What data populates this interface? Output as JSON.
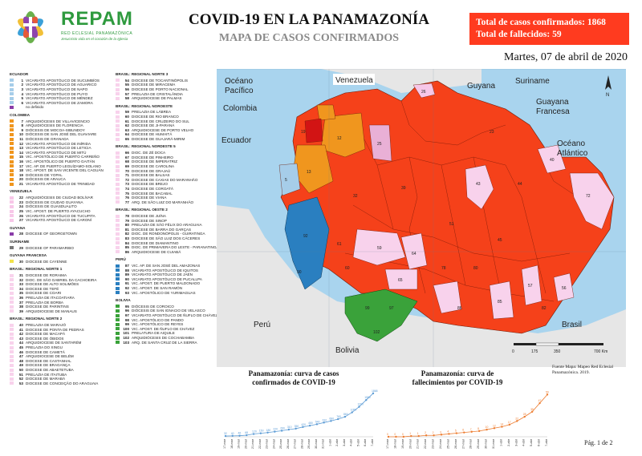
{
  "header": {
    "logo_name": "REPAM",
    "logo_sub": "RED ECLESIAL PANAMAZÓNICA",
    "logo_tag": "Jesucristo vida en el corazón de la Iglesia",
    "title": "COVID-19 EN LA PANAMAZONÍA",
    "subtitle": "MAPA DE CASOS CONFIRMADOS",
    "total_cases": "Total de casos confirmados: 1868",
    "total_deaths": "Total de fallecidos: 59",
    "date": "Martes, 07 de abril de 2020"
  },
  "colors": {
    "confirmed": "#f5411a",
    "ecuador": "#a6cde9",
    "colombia": "#f0961e",
    "venezuela": "#f7c7e8",
    "guyana": "#8a3ca8",
    "suriname": "#777777",
    "guyana_francesa": "#f2e24a",
    "brasil_n1": "#f8d2ec",
    "brasil_n2": "#f8d2ec",
    "peru": "#2a7fc0",
    "bolivia": "#3aa23a",
    "sin_datos": "#ffffff"
  },
  "legend": {
    "groups": [
      {
        "title": "ECUADOR",
        "items": [
          {
            "n": "1",
            "t": "VICARIATO APOSTÓLICO DE SUCUMBÍOS"
          },
          {
            "n": "2",
            "t": "VICARIATO APOSTÓLICO DE AGUARICO"
          },
          {
            "n": "3",
            "t": "VICARIATO APOSTÓLICO DE NAPO"
          },
          {
            "n": "4",
            "t": "VICARIATO APOSTÓLICO DE PUYO"
          },
          {
            "n": "5",
            "t": "VICARIATO APOSTÓLICO DE MÉNDEZ"
          },
          {
            "n": "6",
            "t": "VICARIATO APOSTÓLICO DE ZAMORA"
          },
          {
            "n": "",
            "t": "no definido"
          }
        ]
      },
      {
        "title": "COLOMBIA",
        "items": [
          {
            "n": "7",
            "t": "ARQUIDIÓCESIS DE VILLAVICENCIO"
          },
          {
            "n": "8",
            "t": "ARQUIDIÓCESIS DE FLORENCIA"
          },
          {
            "n": "9",
            "t": "DIÓCESIS DE MOCOA-SIBUNDOY"
          },
          {
            "n": "10",
            "t": "DIÓCESIS DE SAN JOSÉ DEL GUAVIARE"
          },
          {
            "n": "11",
            "t": "DIÓCESIS DE GRANADA"
          },
          {
            "n": "12",
            "t": "VICARIATO APOSTÓLICO DE INÍRIDA"
          },
          {
            "n": "13",
            "t": "VICARIATO APOSTÓLICO DE LETICIA"
          },
          {
            "n": "14",
            "t": "VICARIATO APOSTÓLICO DE MITÚ"
          },
          {
            "n": "15",
            "t": "VIC. APOSTÓLICO DE PUERTO CARREÑO"
          },
          {
            "n": "16",
            "t": "VIC. APOSTÓLICO DE PUERTO GAITÁN"
          },
          {
            "n": "17",
            "t": "VIC. AP. DE PUERTO LEGUÍZAMO-SOLANO"
          },
          {
            "n": "18",
            "t": "VIC. APOST. DE SAN VICENTE DEL CAGUÁN"
          },
          {
            "n": "19",
            "t": "DIÓCESIS DE YOPAL"
          },
          {
            "n": "20",
            "t": "DIÓCESIS DE ARAUCA"
          },
          {
            "n": "21",
            "t": "VICARIATO APOSTÓLICO DE TRINIDAD"
          }
        ]
      },
      {
        "title": "VENEZUELA",
        "items": [
          {
            "n": "22",
            "t": "ARQUIDIÓCESIS DE CIUDAD BOLÍVAR"
          },
          {
            "n": "23",
            "t": "DIÓCESIS DE CIUDAD GUAYANA"
          },
          {
            "n": "24",
            "t": "DIÓCESIS DE GUASDUALITO"
          },
          {
            "n": "25",
            "t": "VIC. APOST. DE PUERTO AYACUCHO"
          },
          {
            "n": "26",
            "t": "VICARIATO APOSTÓLICO DE TUCUPITA"
          },
          {
            "n": "27",
            "t": "VICARIATO APOSTÓLICO DE CARONÍ"
          }
        ]
      },
      {
        "title": "GUYANA",
        "items": [
          {
            "n": "28",
            "t": "DIOCESE OF GEORGETOWN"
          }
        ]
      },
      {
        "title": "SURINAME",
        "items": [
          {
            "n": "29",
            "t": "DIOCESE OF PARAMARIBO"
          }
        ]
      },
      {
        "title": "GUYANA FRANCESA",
        "items": [
          {
            "n": "30",
            "t": "DIOCESE DE CAYENNE"
          }
        ]
      },
      {
        "title": "BRASIL: REGIONAL NORTE 1",
        "items": [
          {
            "n": "31",
            "t": "DIOCESE DE RORAIMA"
          },
          {
            "n": "32",
            "t": "DIOC. DE SÃO GABRIEL DA CACHOEIRA"
          },
          {
            "n": "33",
            "t": "DIOCESE DE ALTO SOLIMÕES"
          },
          {
            "n": "34",
            "t": "DIOCESE DE TEFÉ"
          },
          {
            "n": "35",
            "t": "DIOCESE DE COARI"
          },
          {
            "n": "36",
            "t": "PRELAZIA DE ITACOATIARA"
          },
          {
            "n": "37",
            "t": "PRELAZIA DE BORBA"
          },
          {
            "n": "38",
            "t": "DIOCESE DE PARINTINS"
          },
          {
            "n": "39",
            "t": "ARQUIDIOCESE DE MANAUS"
          }
        ]
      },
      {
        "title": "BRASIL: REGIONAL NORTE 2",
        "items": [
          {
            "n": "40",
            "t": "PRELAZIA DE MARAJÓ"
          },
          {
            "n": "41",
            "t": "DIOCESE DE PONTA DE PEDRAS"
          },
          {
            "n": "42",
            "t": "DIOCESE DE MACAPÁ"
          },
          {
            "n": "43",
            "t": "DIOCESE DE ÓBIDOS"
          },
          {
            "n": "44",
            "t": "ARQUIDIOCESE DE SANTARÉM"
          },
          {
            "n": "45",
            "t": "PRELAZIA DO XINGU"
          },
          {
            "n": "46",
            "t": "DIOCESE DE CAMETÁ"
          },
          {
            "n": "47",
            "t": "ARQUIDIOCESE DE BELÉM"
          },
          {
            "n": "48",
            "t": "DIOCESE DE CASTANHAL"
          },
          {
            "n": "49",
            "t": "DIOCESE DE BRAGANÇA"
          },
          {
            "n": "50",
            "t": "DIOCESE DE ABAETETUBA"
          },
          {
            "n": "51",
            "t": "PRELAZIA DE ITAITUBA"
          },
          {
            "n": "52",
            "t": "DIOCESE DE MARABÁ"
          },
          {
            "n": "53",
            "t": "DIOCESE DE CONCEIÇÃO DO ARAGUAIA"
          }
        ]
      },
      {
        "title": "BRASIL: REGIONAL NORTE 3",
        "items": [
          {
            "n": "54",
            "t": "DIOCESE DE TOCANTINÓPOLIS"
          },
          {
            "n": "55",
            "t": "DIOCESE DE MIRACEMA"
          },
          {
            "n": "56",
            "t": "DIOCESE DE PORTO NACIONAL"
          },
          {
            "n": "57",
            "t": "PRELAZIA DE CRISTALÂNDIA"
          },
          {
            "n": "58",
            "t": "ARQUIDIOCESE DE PALMAS"
          }
        ]
      },
      {
        "title": "BRASIL: REGIONAL NOROESTE",
        "items": [
          {
            "n": "59",
            "t": "PRELAZIA DE LÁBREA"
          },
          {
            "n": "60",
            "t": "DIOCESE DE RIO BRANCO"
          },
          {
            "n": "61",
            "t": "DIOCESE DE CRUZEIRO DO SUL"
          },
          {
            "n": "62",
            "t": "DIOCESE DE JI-PARANÁ"
          },
          {
            "n": "63",
            "t": "ARQUIDIOCESE DE PORTO VELHO"
          },
          {
            "n": "64",
            "t": "DIOCESE DE HUMAITÁ"
          },
          {
            "n": "65",
            "t": "DIOCESE DE GUAJARÁ-MIRIM"
          }
        ]
      },
      {
        "title": "BRASIL: REGIONAL NORDESTE 5",
        "items": [
          {
            "n": "66",
            "t": "DIOC. DE ZÉ DOCA"
          },
          {
            "n": "67",
            "t": "DIOCESE DE PINHEIRO"
          },
          {
            "n": "68",
            "t": "DIOCESE DE IMPERATRIZ"
          },
          {
            "n": "69",
            "t": "DIOCESE DE CAROLINA"
          },
          {
            "n": "70",
            "t": "DIOCESE DE GRAJAÚ"
          },
          {
            "n": "71",
            "t": "DIOCESE DE BALSAS"
          },
          {
            "n": "72",
            "t": "DIOCESE DE CAXIAS DO MARANHÃO"
          },
          {
            "n": "73",
            "t": "DIOCESE DE BREJO"
          },
          {
            "n": "74",
            "t": "DIOCESE DE COROATÁ"
          },
          {
            "n": "75",
            "t": "DIOCESE DE BACABAL"
          },
          {
            "n": "76",
            "t": "DIOCESE DE VIANA"
          },
          {
            "n": "77",
            "t": "ARQ. DE SÃO LUIZ DO MARANHÃO"
          }
        ]
      },
      {
        "title": "BRASIL: REGIONAL OESTE 2",
        "items": [
          {
            "n": "78",
            "t": "DIOCESE DE JUÍNA"
          },
          {
            "n": "79",
            "t": "DIOCESE DE SINOP"
          },
          {
            "n": "80",
            "t": "PRELAZIA DE SÃO FÉLIX DO ARAGUAIA"
          },
          {
            "n": "81",
            "t": "DIOCESE DE BARRA DO GARÇAS"
          },
          {
            "n": "82",
            "t": "DIOC. DE RONDONÓPOLIS - GUIRATINGA"
          },
          {
            "n": "83",
            "t": "DIOCESE DE SÃO LUIZ DOS CÁCERES"
          },
          {
            "n": "84",
            "t": "DIOCESE DE DIAMANTINO"
          },
          {
            "n": "85",
            "t": "DIOC. DE PRIMAVERA DO LESTE - PARANATINGA"
          },
          {
            "n": "86",
            "t": "ARQUIDIOCESE DE CUIABÁ"
          }
        ]
      },
      {
        "title": "PERÚ",
        "items": [
          {
            "n": "87",
            "t": "VIC. AP. DE SAN JOSÉ DEL AMAZONAS"
          },
          {
            "n": "88",
            "t": "VICARIATO APOSTÓLICO DE IQUITOS"
          },
          {
            "n": "89",
            "t": "VICARIATO APOSTÓLICO DE JAÉN"
          },
          {
            "n": "90",
            "t": "VICARIATO APOSTÓLICO DE PUCALLPA"
          },
          {
            "n": "91",
            "t": "VIC. APOST. DE PUERTO MALDONADO"
          },
          {
            "n": "92",
            "t": "VIC. APOST. DE SAN RAMÓN"
          },
          {
            "n": "93",
            "t": "VIC. APOSTÓLICO DE YURIMAGUAS"
          }
        ]
      },
      {
        "title": "BOLIVIA",
        "items": [
          {
            "n": "95",
            "t": "DIÓCESIS DE COROICO"
          },
          {
            "n": "96",
            "t": "DIÓCESIS DE SAN IGNACIO DE VELASCO"
          },
          {
            "n": "97",
            "t": "VICARIATO APOSTÓLICO DE ÑUFLO DE CHÁVEZ"
          },
          {
            "n": "98",
            "t": "VIC. APOSTÓLICO DE PANDO"
          },
          {
            "n": "99",
            "t": "VIC. APOSTÓLICO DE REYES"
          },
          {
            "n": "100",
            "t": "VIC. APOST. DE ÑUFLO DE CHÁVEZ"
          },
          {
            "n": "101",
            "t": "PRELATURA DE AIQUILE"
          },
          {
            "n": "102",
            "t": "ARQUIDIÓCESIS DE COCHABAMBA"
          },
          {
            "n": "103",
            "t": "ARQ. DE SANTA CRUZ DE LA SIERRA"
          }
        ]
      }
    ]
  },
  "map": {
    "labels": {
      "oceano_pacifico": "Océano Pacífico",
      "oceano_atlantico": "Océano Atlántico",
      "venezuela": "Venezuela",
      "colombia": "Colombia",
      "ecuador": "Ecuador",
      "guyana": "Guyana",
      "suriname": "Suriname",
      "guyana_francesa": "Guyana Francesa",
      "peru": "Perú",
      "bolivia": "Bolivia",
      "brasil": "Brasil"
    },
    "scale_labels": [
      "0",
      "175",
      "350",
      "700 Km"
    ],
    "credit": "Fuente Mapa: Mapeo Red Eclesial Panamazónica. 2019."
  },
  "chart_data": [
    {
      "type": "line",
      "title": "Panamazonía: curva de casos confirmados de COVID-19",
      "categories": [
        "17-mar",
        "18-mar",
        "19-mar",
        "20-mar",
        "21-mar",
        "22-mar",
        "23-mar",
        "24-mar",
        "25-mar",
        "26-mar",
        "27-mar",
        "28-mar",
        "29-mar",
        "30-mar",
        "31-mar",
        "1-abr",
        "2-abr",
        "3-abr",
        "4-abr",
        "5-abr",
        "6-abr",
        "7-abr"
      ],
      "series": [
        {
          "values": [
            32,
            40,
            46,
            68,
            120,
            150,
            180,
            220,
            260,
            310,
            350,
            420,
            480,
            540,
            610,
            680,
            760,
            860,
            1050,
            1290,
            1580,
            1868
          ]
        }
      ],
      "data_labels": [
        "32",
        "40",
        "46",
        "68",
        "120",
        "150",
        "180",
        "220",
        "260",
        "310",
        "350",
        "420",
        "480",
        "540",
        "610",
        "680",
        "760",
        "860",
        "1050",
        "1290",
        "1580",
        "1868"
      ],
      "ylim": [
        0,
        2000
      ],
      "color": "#5b9bd5"
    },
    {
      "type": "line",
      "title": "Panamazonía: curva de fallecimientos por COVID-19",
      "categories": [
        "17-mar",
        "18-mar",
        "19-mar",
        "20-mar",
        "21-mar",
        "22-mar",
        "23-mar",
        "24-mar",
        "25-mar",
        "26-mar",
        "27-mar",
        "28-mar",
        "29-mar",
        "30-mar",
        "31-mar",
        "1-abr",
        "2-abr",
        "3-abr",
        "4-abr",
        "5-abr",
        "6-abr",
        "7-abr"
      ],
      "series": [
        {
          "values": [
            0,
            0,
            0,
            1,
            1,
            2,
            2,
            3,
            4,
            5,
            6,
            7,
            8,
            10,
            12,
            14,
            17,
            22,
            28,
            35,
            47,
            59
          ]
        }
      ],
      "data_labels": [
        "0",
        "0",
        "0",
        "1",
        "1",
        "2",
        "2",
        "3",
        "4",
        "5",
        "6",
        "7",
        "8",
        "10",
        "12",
        "14",
        "17",
        "22",
        "28",
        "35",
        "47",
        "59"
      ],
      "ylim": [
        0,
        65
      ],
      "color": "#ed7d31"
    }
  ],
  "footer": {
    "page": "Pág. 1 de 2"
  }
}
